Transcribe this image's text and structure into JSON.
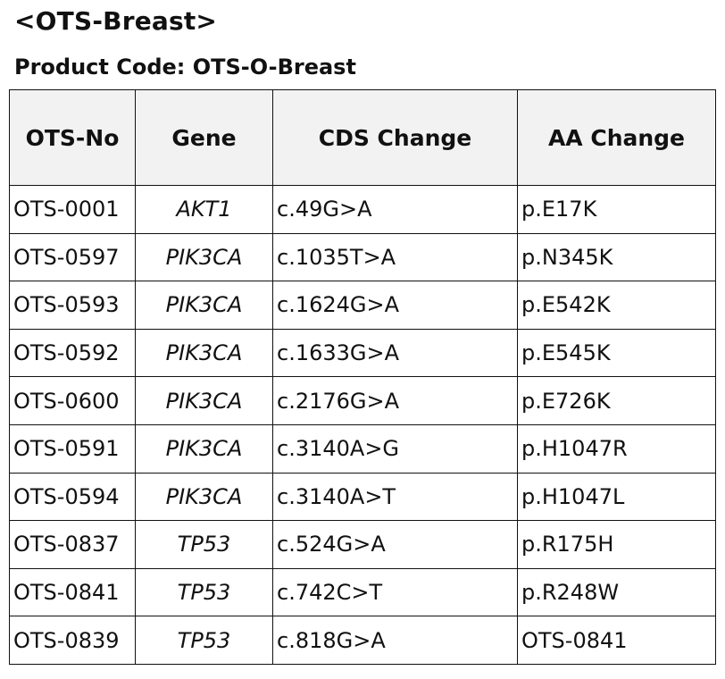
{
  "title": "<OTS-Breast>",
  "product_code": "Product Code: OTS-O-Breast",
  "table": {
    "headers": [
      "OTS-No",
      "Gene",
      "CDS Change",
      "AA Change"
    ],
    "rows": [
      [
        "OTS-0001",
        "AKT1",
        "c.49G>A",
        "p.E17K"
      ],
      [
        "OTS-0597",
        "PIK3CA",
        "c.1035T>A",
        "p.N345K"
      ],
      [
        "OTS-0593",
        "PIK3CA",
        "c.1624G>A",
        "p.E542K"
      ],
      [
        "OTS-0592",
        "PIK3CA",
        "c.1633G>A",
        "p.E545K"
      ],
      [
        "OTS-0600",
        "PIK3CA",
        "c.2176G>A",
        "p.E726K"
      ],
      [
        "OTS-0591",
        "PIK3CA",
        "c.3140A>G",
        "p.H1047R"
      ],
      [
        "OTS-0594",
        "PIK3CA",
        "c.3140A>T",
        "p.H1047L"
      ],
      [
        "OTS-0837",
        "TP53",
        "c.524G>A",
        "p.R175H"
      ],
      [
        "OTS-0841",
        "TP53",
        "c.742C>T",
        "p.R248W"
      ],
      [
        "OTS-0839",
        "TP53",
        "c.818G>A",
        "OTS-0841"
      ]
    ]
  }
}
